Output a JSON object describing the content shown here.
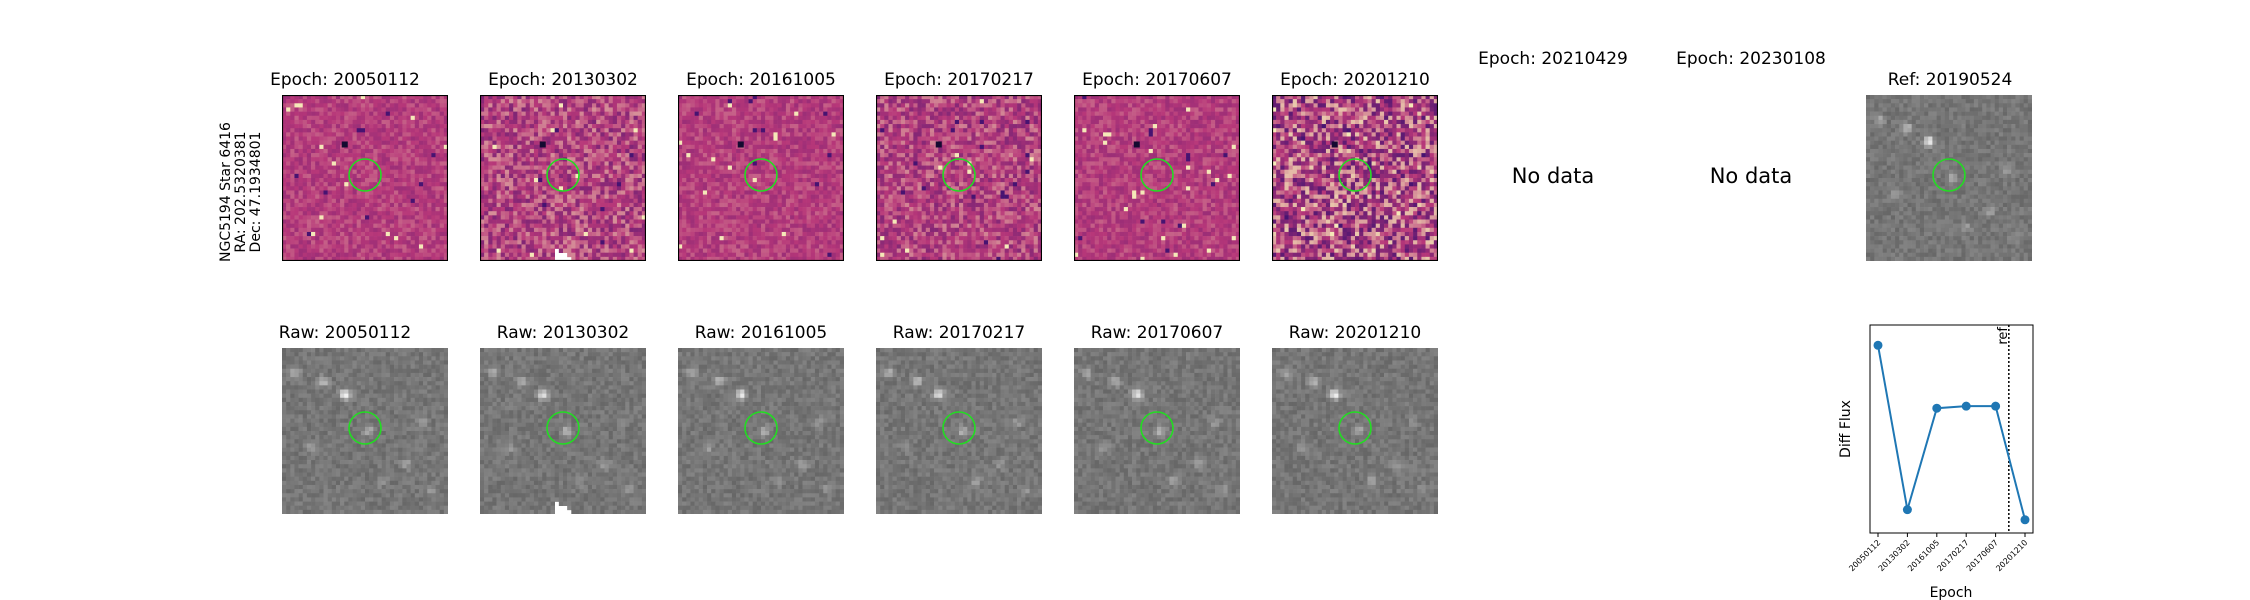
{
  "target": {
    "name": "NGC5194 Star 6416",
    "ra": "RA: 202.5320381",
    "dec": "Dec: 47.1934801"
  },
  "epoch_titles": [
    "Epoch: 20050112",
    "Epoch: 20130302",
    "Epoch: 20161005",
    "Epoch: 20170217",
    "Epoch: 20170607",
    "Epoch: 20201210",
    "Epoch: 20210429",
    "Epoch: 20230108"
  ],
  "ref_title": "Ref: 20190524",
  "raw_titles": [
    "Raw: 20050112",
    "Raw: 20130302",
    "Raw: 20161005",
    "Raw: 20170217",
    "Raw: 20170607",
    "Raw: 20201210"
  ],
  "no_data_text": "No data",
  "colors": {
    "marker": "#22dd22",
    "line": "#1f77b4",
    "diff_cmap_low": "#3b0f70",
    "diff_cmap_mid": "#b73779",
    "diff_cmap_high": "#fcfdbf"
  },
  "chart_data": {
    "type": "line",
    "x": [
      "20050112",
      "20130302",
      "20161005",
      "20170217",
      "20170607",
      "20201210"
    ],
    "series": [
      {
        "values": [
          1.0,
          -0.62,
          0.38,
          0.4,
          0.4,
          -0.72
        ]
      }
    ],
    "xlabel": "Epoch",
    "ylabel": "Diff Flux",
    "ref_line_label": "ref",
    "ref_line_after": "20170607",
    "ylim": [
      -0.85,
      1.2
    ],
    "grid": false
  }
}
